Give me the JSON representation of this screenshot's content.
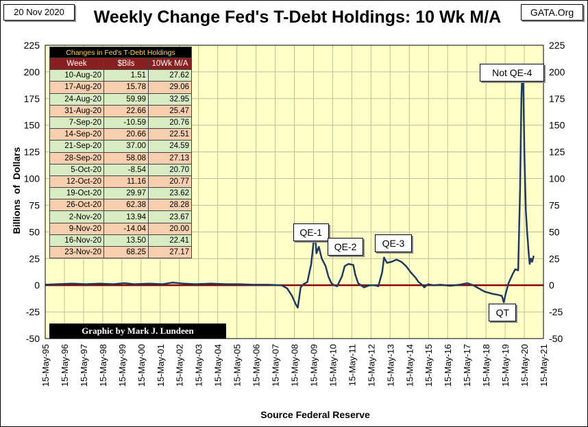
{
  "header": {
    "date": "20 Nov 2020",
    "site": "GATA.Org",
    "title": "Weekly Change Fed's T-Debt Holdings: 10 Wk M/A"
  },
  "credit": "Graphic by Mark J. Lundeen",
  "table": {
    "caption": "Changes in Fed's T-Debt Holdings",
    "columns": [
      "Week",
      "$Bils",
      "10Wk M/A"
    ],
    "rows": [
      [
        "10-Aug-20",
        "1.51",
        "27.62"
      ],
      [
        "17-Aug-20",
        "15.78",
        "29.06"
      ],
      [
        "24-Aug-20",
        "59.99",
        "32.95"
      ],
      [
        "31-Aug-20",
        "22.66",
        "25.47"
      ],
      [
        "7-Sep-20",
        "-10.59",
        "20.76"
      ],
      [
        "14-Sep-20",
        "20.66",
        "22.51"
      ],
      [
        "21-Sep-20",
        "37.00",
        "24.59"
      ],
      [
        "28-Sep-20",
        "58.08",
        "27.13"
      ],
      [
        "5-Oct-20",
        "-8.54",
        "20.70"
      ],
      [
        "12-Oct-20",
        "11.16",
        "20.77"
      ],
      [
        "19-Oct-20",
        "29.97",
        "23.62"
      ],
      [
        "26-Oct-20",
        "62.38",
        "28.28"
      ],
      [
        "2-Nov-20",
        "13.94",
        "23.67"
      ],
      [
        "9-Nov-20",
        "-14.04",
        "20.00"
      ],
      [
        "16-Nov-20",
        "13.50",
        "22.41"
      ],
      [
        "23-Nov-20",
        "68.25",
        "27.17"
      ]
    ]
  },
  "colors": {
    "plot_bg": "#ffffc8",
    "grid": "#bdbd9a",
    "line": "#1f3a5f",
    "zero_line": "#8b0000",
    "header_row": "#8b1e1e",
    "row_green": "#d8ecc4",
    "row_orange": "#f7cfae"
  },
  "chart_data": {
    "type": "line",
    "title": "Weekly Change Fed's T-Debt Holdings: 10 Wk M/A",
    "ylabel": "Billions  of  Dollars",
    "xlabel": "Source Federal Reserve",
    "ylim": [
      -50,
      225
    ],
    "yticks": [
      -50,
      -25,
      0,
      25,
      50,
      75,
      100,
      125,
      150,
      175,
      200,
      225
    ],
    "xlim": [
      1995.37,
      2021.37
    ],
    "xticks": [
      {
        "v": 1995.37,
        "label": "15-May-95"
      },
      {
        "v": 1996.37,
        "label": "15-May-96"
      },
      {
        "v": 1997.37,
        "label": "15-May-97"
      },
      {
        "v": 1998.37,
        "label": "15-May-98"
      },
      {
        "v": 1999.37,
        "label": "15-May-99"
      },
      {
        "v": 2000.37,
        "label": "15-May-00"
      },
      {
        "v": 2001.37,
        "label": "15-May-01"
      },
      {
        "v": 2002.37,
        "label": "15-May-02"
      },
      {
        "v": 2003.37,
        "label": "15-May-03"
      },
      {
        "v": 2004.37,
        "label": "15-May-04"
      },
      {
        "v": 2005.37,
        "label": "15-May-05"
      },
      {
        "v": 2006.37,
        "label": "15-May-06"
      },
      {
        "v": 2007.37,
        "label": "15-May-07"
      },
      {
        "v": 2008.37,
        "label": "15-May-08"
      },
      {
        "v": 2009.37,
        "label": "15-May-09"
      },
      {
        "v": 2010.37,
        "label": "15-May-10"
      },
      {
        "v": 2011.37,
        "label": "15-May-11"
      },
      {
        "v": 2012.37,
        "label": "15-May-12"
      },
      {
        "v": 2013.37,
        "label": "15-May-13"
      },
      {
        "v": 2014.37,
        "label": "15-May-14"
      },
      {
        "v": 2015.37,
        "label": "15-May-15"
      },
      {
        "v": 2016.37,
        "label": "15-May-16"
      },
      {
        "v": 2017.37,
        "label": "15-May-17"
      },
      {
        "v": 2018.37,
        "label": "15-May-18"
      },
      {
        "v": 2019.37,
        "label": "15-May-19"
      },
      {
        "v": 2020.37,
        "label": "15-May-20"
      },
      {
        "v": 2021.37,
        "label": "15-May-21"
      }
    ],
    "grid": true,
    "series": [
      {
        "points": [
          [
            1995.37,
            0.5
          ],
          [
            1996.0,
            1.0
          ],
          [
            1996.8,
            1.5
          ],
          [
            1997.5,
            1.0
          ],
          [
            1998.2,
            1.5
          ],
          [
            1998.9,
            1.0
          ],
          [
            1999.5,
            2.0
          ],
          [
            2000.0,
            1.0
          ],
          [
            2000.8,
            1.5
          ],
          [
            2001.5,
            1.0
          ],
          [
            2002.0,
            2.5
          ],
          [
            2002.6,
            1.5
          ],
          [
            2003.2,
            1.0
          ],
          [
            2004.0,
            1.5
          ],
          [
            2004.8,
            1.0
          ],
          [
            2005.5,
            1.0
          ],
          [
            2006.2,
            0.5
          ],
          [
            2007.0,
            0.5
          ],
          [
            2007.7,
            0.0
          ],
          [
            2008.0,
            -3.0
          ],
          [
            2008.25,
            -10.0
          ],
          [
            2008.45,
            -18.0
          ],
          [
            2008.55,
            -21.0
          ],
          [
            2008.62,
            -12.0
          ],
          [
            2008.7,
            -2.0
          ],
          [
            2008.85,
            1.0
          ],
          [
            2009.05,
            3.0
          ],
          [
            2009.25,
            20.0
          ],
          [
            2009.37,
            40.0
          ],
          [
            2009.45,
            50.0
          ],
          [
            2009.52,
            30.0
          ],
          [
            2009.65,
            36.0
          ],
          [
            2009.8,
            25.0
          ],
          [
            2010.0,
            18.0
          ],
          [
            2010.15,
            8.0
          ],
          [
            2010.3,
            2.0
          ],
          [
            2010.45,
            0.0
          ],
          [
            2010.6,
            -1.0
          ],
          [
            2010.85,
            8.0
          ],
          [
            2011.0,
            18.0
          ],
          [
            2011.2,
            20.0
          ],
          [
            2011.45,
            19.0
          ],
          [
            2011.55,
            10.0
          ],
          [
            2011.7,
            2.0
          ],
          [
            2011.85,
            0.0
          ],
          [
            2012.0,
            -2.0
          ],
          [
            2012.3,
            0.0
          ],
          [
            2012.55,
            0.0
          ],
          [
            2012.75,
            -1.0
          ],
          [
            2012.95,
            12.0
          ],
          [
            2013.05,
            26.0
          ],
          [
            2013.2,
            21.0
          ],
          [
            2013.45,
            22.0
          ],
          [
            2013.7,
            24.0
          ],
          [
            2013.95,
            22.0
          ],
          [
            2014.2,
            18.0
          ],
          [
            2014.45,
            12.0
          ],
          [
            2014.7,
            7.0
          ],
          [
            2014.85,
            3.0
          ],
          [
            2015.0,
            1.0
          ],
          [
            2015.15,
            -2.0
          ],
          [
            2015.35,
            1.0
          ],
          [
            2015.6,
            0.0
          ],
          [
            2016.0,
            0.5
          ],
          [
            2016.5,
            -0.5
          ],
          [
            2017.0,
            0.5
          ],
          [
            2017.4,
            2.0
          ],
          [
            2017.7,
            0.0
          ],
          [
            2018.0,
            -3.0
          ],
          [
            2018.3,
            -6.0
          ],
          [
            2018.7,
            -8.0
          ],
          [
            2019.0,
            -9.0
          ],
          [
            2019.2,
            -10.0
          ],
          [
            2019.3,
            -16.0
          ],
          [
            2019.4,
            -8.0
          ],
          [
            2019.55,
            2.0
          ],
          [
            2019.75,
            10.0
          ],
          [
            2019.9,
            15.0
          ],
          [
            2020.05,
            14.0
          ],
          [
            2020.15,
            90.0
          ],
          [
            2020.22,
            175.0
          ],
          [
            2020.27,
            203.0
          ],
          [
            2020.32,
            190.0
          ],
          [
            2020.38,
            120.0
          ],
          [
            2020.45,
            70.0
          ],
          [
            2020.52,
            50.0
          ],
          [
            2020.6,
            30.0
          ],
          [
            2020.65,
            20.0
          ],
          [
            2020.72,
            25.0
          ],
          [
            2020.78,
            22.0
          ],
          [
            2020.85,
            27.0
          ],
          [
            2020.89,
            27.17
          ]
        ]
      }
    ],
    "annotations": [
      {
        "text": "QE-1",
        "x": 2009.2,
        "y": 50
      },
      {
        "text": "QE-2",
        "x": 2011.0,
        "y": 37
      },
      {
        "text": "QE-3",
        "x": 2013.5,
        "y": 40
      },
      {
        "text": "QT",
        "x": 2019.2,
        "y": -25
      },
      {
        "text": "Not QE-4",
        "x": 2019.7,
        "y": 200
      }
    ]
  },
  "source": "Source Federal Reserve"
}
